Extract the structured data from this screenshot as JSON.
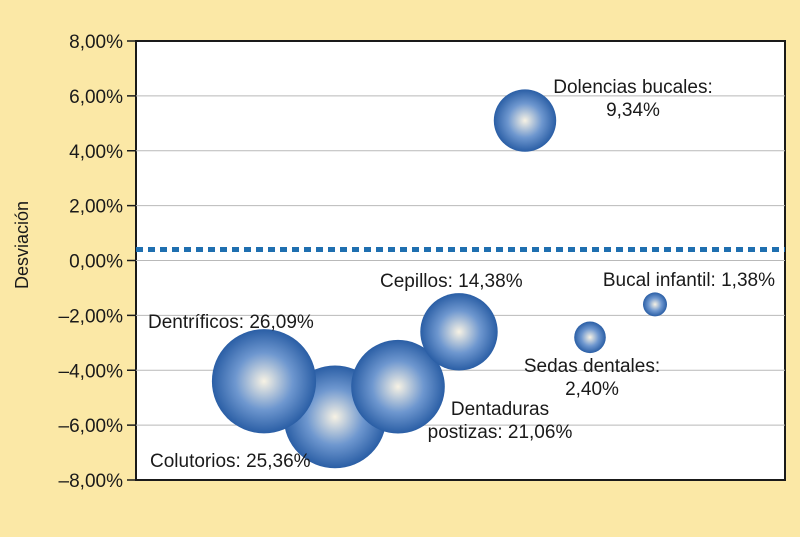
{
  "chart_data": {
    "type": "scatter",
    "title": "",
    "xlabel": "",
    "ylabel": "Desviación",
    "ylim": [
      -8,
      8
    ],
    "y_ticks": [
      "8,00%",
      "6,00%",
      "4,00%",
      "2,00%",
      "0,00%",
      "–2,00%",
      "–4,00%",
      "–6,00%",
      "–8,00%"
    ],
    "reference_line_y": 0.4,
    "grid": true,
    "bubbles": [
      {
        "label_lines": [
          "Colutorios: 25,36%"
        ],
        "y": -5.7,
        "share": 25.36
      },
      {
        "label_lines": [
          "Dentríficos: 26,09%"
        ],
        "y": -4.4,
        "share": 26.09
      },
      {
        "label_lines": [
          "Dentaduras",
          "postizas: 21,06%"
        ],
        "y": -4.6,
        "share": 21.06
      },
      {
        "label_lines": [
          "Cepillos: 14,38%"
        ],
        "y": -2.6,
        "share": 14.38
      },
      {
        "label_lines": [
          "Sedas dentales:",
          "2,40%"
        ],
        "y": -2.8,
        "share": 2.4
      },
      {
        "label_lines": [
          "Bucal infantil: 1,38%"
        ],
        "y": -1.6,
        "share": 1.38
      },
      {
        "label_lines": [
          "Dolencias bucales:",
          "9,34%"
        ],
        "y": 5.1,
        "share": 9.34
      }
    ],
    "colors": {
      "background": "#fbe8a6",
      "plot_area": "#ffffff",
      "grid": "#b9b9b9",
      "reference_line": "#1f6fb0",
      "bubble_center": "#f7f2e4",
      "bubble_mid": "#6e97cf",
      "bubble_edge": "#2a5ea5"
    }
  }
}
